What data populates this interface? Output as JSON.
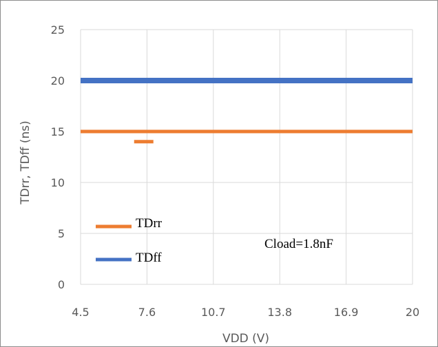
{
  "chart_data": {
    "type": "line",
    "xlabel": "VDD (V)",
    "ylabel": "TDrr, TDff (ns)",
    "x_ticks": [
      "4.5",
      "7.6",
      "10.7",
      "13.8",
      "16.9",
      "20"
    ],
    "y_ticks": [
      "0",
      "5",
      "10",
      "15",
      "20",
      "25"
    ],
    "xlim": [
      4.5,
      20
    ],
    "ylim": [
      0,
      25
    ],
    "grid": true,
    "legend_placement": "bottom-left",
    "annotation": "Cload=1.8nF",
    "series": [
      {
        "name": "TDrr",
        "color": "#ed7d31",
        "x": [
          4.5,
          20
        ],
        "y": [
          15,
          15
        ]
      },
      {
        "name": "TDff",
        "color": "#4472c4",
        "x": [
          4.5,
          20
        ],
        "y": [
          20,
          20
        ]
      }
    ],
    "extra_segment": {
      "series": "TDrr",
      "x": [
        7.0,
        7.9
      ],
      "y": [
        14,
        14
      ]
    }
  }
}
